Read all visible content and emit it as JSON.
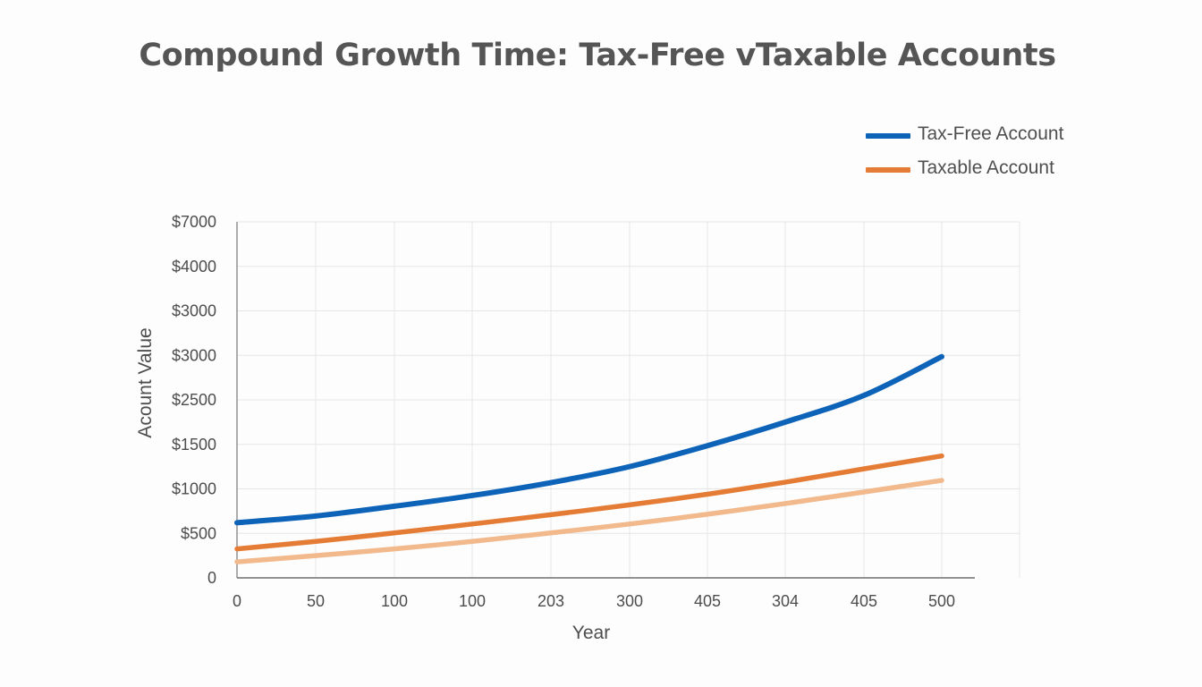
{
  "chart_data": {
    "type": "line",
    "title": "Compound Growth Time: Tax-Free vTaxable Accounts",
    "xlabel": "Year",
    "ylabel": "Acount Value",
    "x_tick_labels": [
      "0",
      "50",
      "100",
      "100",
      "203",
      "300",
      "405",
      "304",
      "405",
      "500"
    ],
    "y_tick_labels": [
      "0",
      "$500",
      "$1000",
      "$1500",
      "$2500",
      "$3000",
      "$3000",
      "$4000",
      "$7000"
    ],
    "grid": true,
    "legend_position": "top-right",
    "series": [
      {
        "name": "Tax-Free Account",
        "color": "#0d63b8",
        "values": [
          1.24,
          1.39,
          1.61,
          1.85,
          2.14,
          2.5,
          2.97,
          3.5,
          4.1,
          4.97
        ]
      },
      {
        "name": "Taxable Account",
        "color": "#e57c35",
        "values": [
          0.65,
          0.82,
          1.01,
          1.21,
          1.42,
          1.64,
          1.88,
          2.15,
          2.45,
          2.74
        ]
      },
      {
        "name": "",
        "color": "#f2b98d",
        "values": [
          0.36,
          0.5,
          0.65,
          0.82,
          1.01,
          1.21,
          1.43,
          1.67,
          1.93,
          2.19
        ]
      }
    ]
  }
}
